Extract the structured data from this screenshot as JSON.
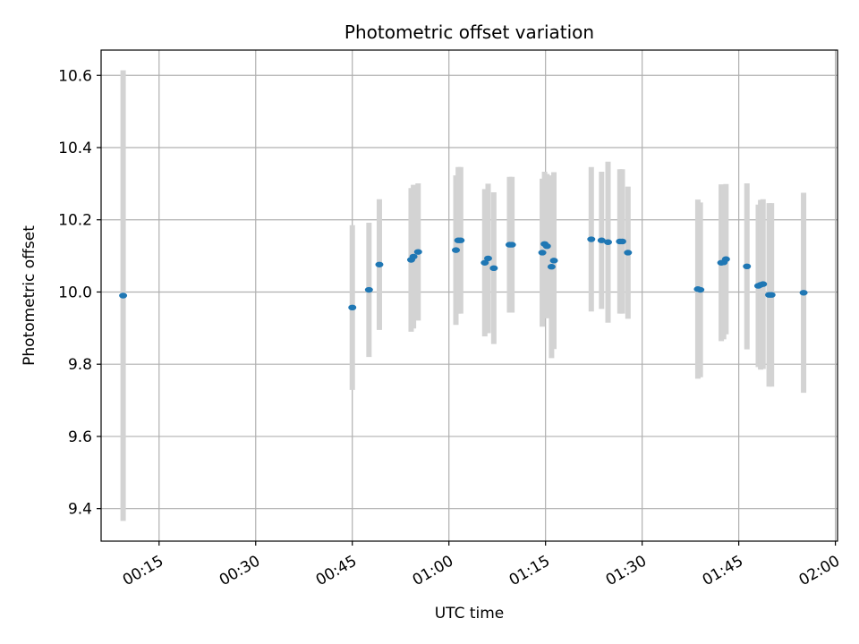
{
  "chart_data": {
    "type": "scatter",
    "title": "Photometric offset variation",
    "xlabel": "UTC time",
    "ylabel": "Photometric offset",
    "xlim": [
      "00:06",
      "02:00:20"
    ],
    "ylim": [
      9.31,
      10.67
    ],
    "grid": true,
    "x_tick_labels": [
      "00:15",
      "00:30",
      "00:45",
      "01:00",
      "01:15",
      "01:30",
      "01:45",
      "02:00"
    ],
    "y_tick_labels": [
      "9.4",
      "9.6",
      "9.8",
      "10.0",
      "10.2",
      "10.4",
      "10.6"
    ],
    "series": [
      {
        "colors": {
          "point": "#1f77b4",
          "errorbar": "#d3d3d3"
        },
        "points": [
          {
            "time": "00:09:25",
            "y": 9.99,
            "yerr": 0.624
          },
          {
            "time": "00:45:00",
            "y": 9.957,
            "yerr": 0.228
          },
          {
            "time": "00:47:35",
            "y": 10.006,
            "yerr": 0.186
          },
          {
            "time": "00:49:12",
            "y": 10.076,
            "yerr": 0.181
          },
          {
            "time": "00:54:08",
            "y": 10.089,
            "yerr": 0.199
          },
          {
            "time": "00:54:30",
            "y": 10.098,
            "yerr": 0.199
          },
          {
            "time": "00:55:13",
            "y": 10.111,
            "yerr": 0.19
          },
          {
            "time": "01:01:05",
            "y": 10.116,
            "yerr": 0.207
          },
          {
            "time": "01:01:27",
            "y": 10.143,
            "yerr": 0.203
          },
          {
            "time": "01:01:49",
            "y": 10.143,
            "yerr": 0.203
          },
          {
            "time": "01:05:34",
            "y": 10.081,
            "yerr": 0.204
          },
          {
            "time": "01:06:05",
            "y": 10.093,
            "yerr": 0.207
          },
          {
            "time": "01:06:58",
            "y": 10.066,
            "yerr": 0.21
          },
          {
            "time": "01:09:25",
            "y": 10.131,
            "yerr": 0.188
          },
          {
            "time": "01:09:47",
            "y": 10.131,
            "yerr": 0.188
          },
          {
            "time": "01:14:30",
            "y": 10.109,
            "yerr": 0.205
          },
          {
            "time": "01:14:51",
            "y": 10.133,
            "yerr": 0.2
          },
          {
            "time": "01:15:13",
            "y": 10.127,
            "yerr": 0.2
          },
          {
            "time": "01:15:56",
            "y": 10.07,
            "yerr": 0.253
          },
          {
            "time": "01:16:18",
            "y": 10.087,
            "yerr": 0.245
          },
          {
            "time": "01:22:06",
            "y": 10.146,
            "yerr": 0.2
          },
          {
            "time": "01:23:42",
            "y": 10.143,
            "yerr": 0.19
          },
          {
            "time": "01:24:42",
            "y": 10.138,
            "yerr": 0.223
          },
          {
            "time": "01:26:33",
            "y": 10.14,
            "yerr": 0.2
          },
          {
            "time": "01:26:55",
            "y": 10.14,
            "yerr": 0.2
          },
          {
            "time": "01:27:48",
            "y": 10.109,
            "yerr": 0.183
          },
          {
            "time": "01:38:39",
            "y": 10.008,
            "yerr": 0.248
          },
          {
            "time": "01:39:02",
            "y": 10.006,
            "yerr": 0.242
          },
          {
            "time": "01:42:17",
            "y": 10.081,
            "yerr": 0.217
          },
          {
            "time": "01:42:39",
            "y": 10.082,
            "yerr": 0.213
          },
          {
            "time": "01:43:01",
            "y": 10.091,
            "yerr": 0.208
          },
          {
            "time": "01:46:16",
            "y": 10.071,
            "yerr": 0.23
          },
          {
            "time": "01:48:02",
            "y": 10.017,
            "yerr": 0.225
          },
          {
            "time": "01:48:24",
            "y": 10.02,
            "yerr": 0.235
          },
          {
            "time": "01:48:46",
            "y": 10.022,
            "yerr": 0.235
          },
          {
            "time": "01:49:43",
            "y": 9.992,
            "yerr": 0.254
          },
          {
            "time": "01:50:05",
            "y": 9.992,
            "yerr": 0.254
          },
          {
            "time": "01:55:04",
            "y": 9.998,
            "yerr": 0.277
          }
        ]
      }
    ]
  }
}
